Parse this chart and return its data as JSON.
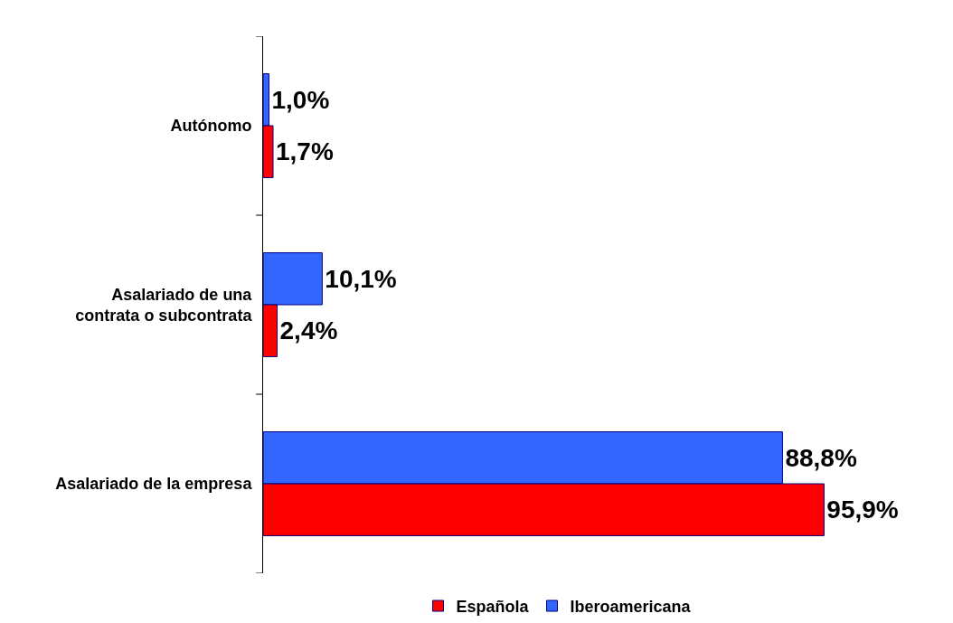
{
  "chart_data": {
    "type": "bar",
    "orientation": "horizontal",
    "categories": [
      "Autónomo",
      "Asalariado de una contrata o subcontrata",
      "Asalariado de la empresa"
    ],
    "series": [
      {
        "name": "Española",
        "color": "#ff0000",
        "values": [
          1.7,
          2.4,
          95.9
        ],
        "value_labels": [
          "1,7%",
          "2,4%",
          "95,9%"
        ]
      },
      {
        "name": "Iberoamericana",
        "color": "#3366ff",
        "values": [
          1.0,
          10.1,
          88.8
        ],
        "value_labels": [
          "1,0%",
          "10,1%",
          "88,8%"
        ]
      }
    ],
    "legend": "bottom",
    "grid": false,
    "tick_labels": "y"
  }
}
